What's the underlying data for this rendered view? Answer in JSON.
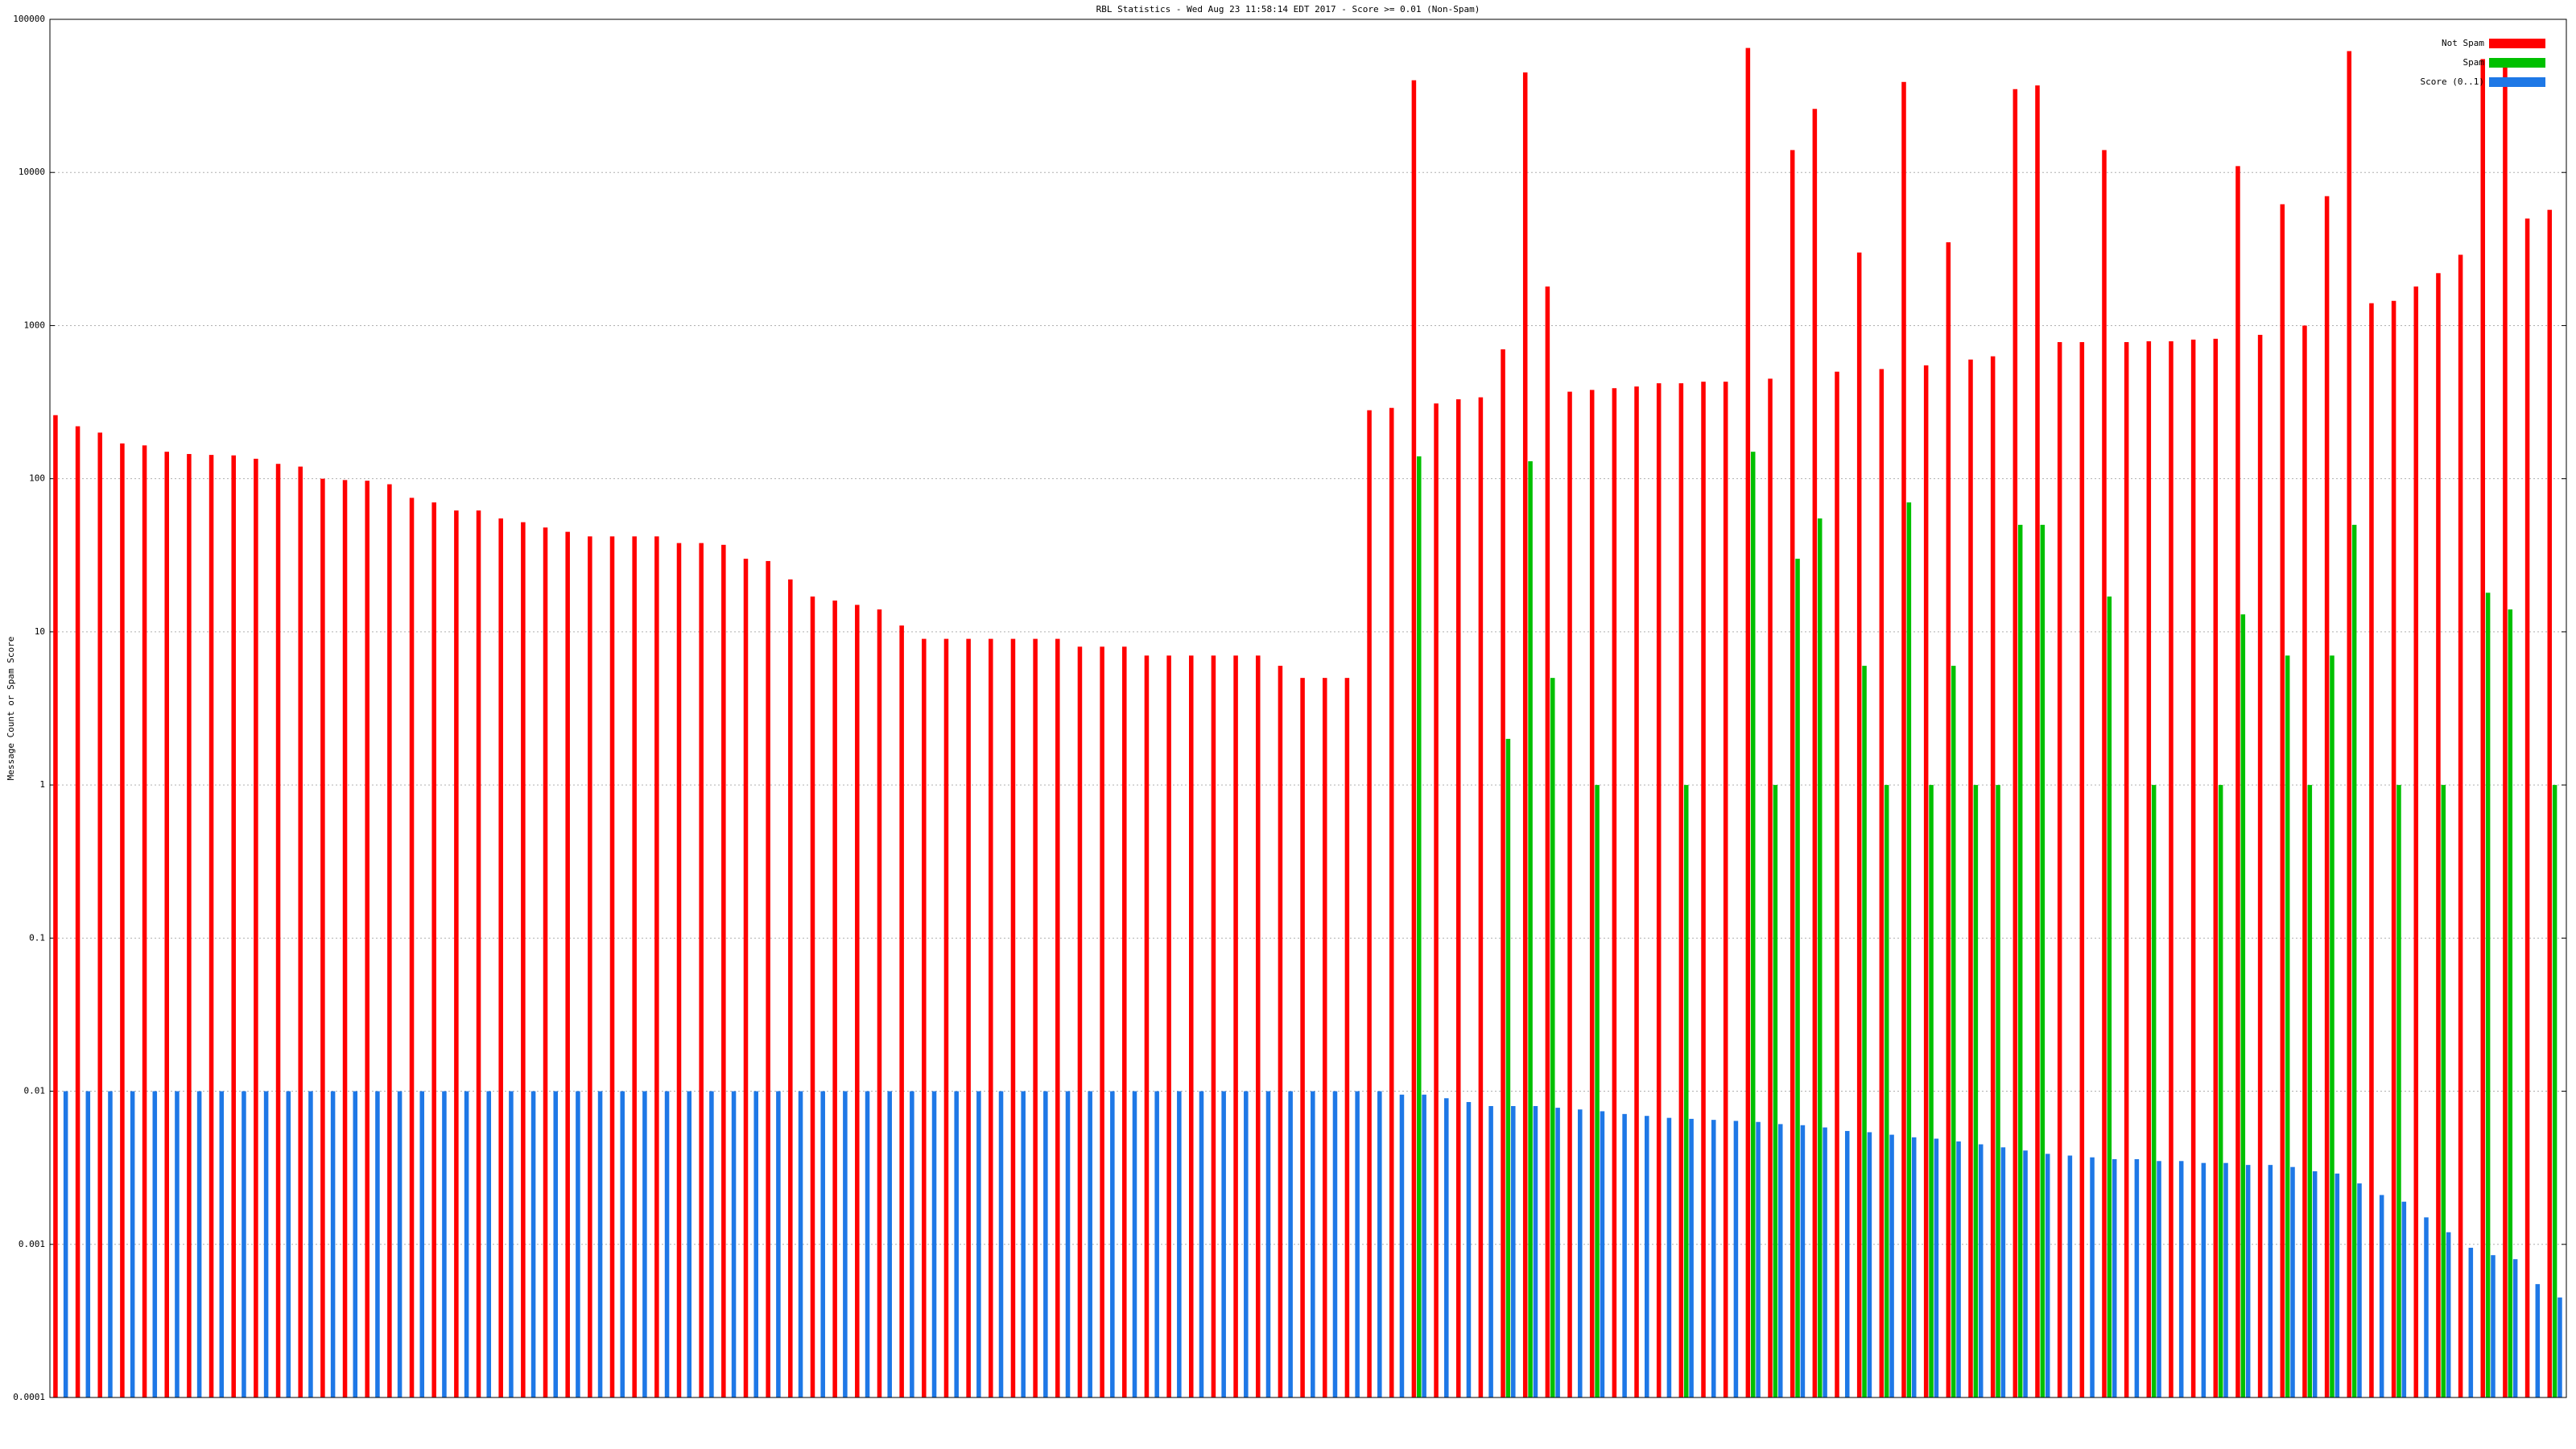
{
  "chart_data": {
    "type": "bar",
    "title": "RBL Statistics - Wed Aug 23 11:58:14 EDT 2017 - Score >= 0.01 (Non-Spam)",
    "ylabel": "Message Count or Spam Score",
    "yscale": "log",
    "ylim": [
      0.0001,
      100000
    ],
    "yticks": [
      0.0001,
      0.001,
      0.01,
      0.1,
      1,
      10,
      100,
      1000,
      10000,
      100000
    ],
    "grid": true,
    "legend": "upper right",
    "categories": [
      null,
      null,
      null,
      null,
      null,
      null,
      null,
      null,
      null,
      null,
      null,
      null,
      null,
      null,
      null,
      null,
      null,
      null,
      null,
      null,
      null,
      null,
      null,
      null,
      null,
      null,
      null,
      null,
      null,
      null,
      null,
      null,
      null,
      null,
      null,
      null,
      null,
      null,
      null,
      null,
      null,
      null,
      null,
      null,
      null,
      null,
      null,
      null,
      null,
      null,
      null,
      null,
      null,
      null,
      null,
      null,
      null,
      null,
      null,
      null,
      null,
      null,
      null,
      null,
      null,
      null,
      null,
      null,
      null,
      null,
      null,
      null,
      null,
      null,
      null,
      null,
      null,
      null,
      null,
      null,
      null,
      null,
      null,
      null,
      null,
      null,
      null,
      null,
      null,
      null,
      null,
      null,
      null,
      null,
      null,
      null,
      null,
      null,
      null,
      null,
      null,
      null,
      null,
      null,
      null,
      null,
      null,
      null,
      null,
      null,
      null,
      null,
      null
    ],
    "series": [
      {
        "name": "Not Spam",
        "color": "#ff0000",
        "values": [
          260,
          220,
          200,
          170,
          165,
          150,
          145,
          143,
          142,
          135,
          125,
          120,
          100,
          98,
          97,
          92,
          75,
          70,
          62,
          62,
          55,
          52,
          48,
          45,
          42,
          42,
          42,
          42,
          38,
          38,
          37,
          30,
          29,
          22,
          17,
          16,
          15,
          14,
          11,
          9,
          9,
          9,
          9,
          9,
          9,
          9,
          8,
          8,
          8,
          7,
          7,
          7,
          7,
          7,
          7,
          6,
          5,
          5,
          5,
          280,
          290,
          40000,
          310,
          330,
          340,
          700,
          45000,
          1800,
          370,
          380,
          390,
          400,
          420,
          420,
          430,
          430,
          65000,
          450,
          14000,
          26000,
          500,
          3000,
          520,
          39000,
          550,
          3500,
          600,
          630,
          35000,
          37000,
          780,
          780,
          14000,
          780,
          790,
          790,
          810,
          820,
          11000,
          870,
          6200,
          1000,
          7000,
          62000,
          1400,
          1450,
          1800,
          2200,
          2900,
          55000,
          52000,
          5000,
          5700
        ]
      },
      {
        "name": "Spam",
        "color": "#00c000",
        "values": [
          null,
          null,
          null,
          null,
          null,
          null,
          null,
          null,
          null,
          null,
          null,
          null,
          null,
          null,
          null,
          null,
          null,
          null,
          null,
          null,
          null,
          null,
          null,
          null,
          null,
          null,
          null,
          null,
          null,
          null,
          null,
          null,
          null,
          null,
          null,
          null,
          null,
          null,
          null,
          null,
          null,
          null,
          null,
          null,
          null,
          null,
          null,
          null,
          null,
          null,
          null,
          null,
          null,
          null,
          null,
          null,
          null,
          null,
          null,
          null,
          null,
          140,
          null,
          null,
          null,
          2,
          130,
          5,
          null,
          1,
          null,
          null,
          null,
          1,
          null,
          null,
          150,
          1,
          30,
          55,
          null,
          6,
          1,
          70,
          1,
          6,
          1,
          1,
          50,
          50,
          null,
          null,
          17,
          null,
          1,
          null,
          null,
          1,
          13,
          null,
          7,
          1,
          7,
          50,
          null,
          1,
          null,
          1,
          null,
          18,
          14,
          null,
          1
        ]
      },
      {
        "name": "Score (0..1)",
        "color": "#1e78e6",
        "values": [
          0.01,
          0.01,
          0.01,
          0.01,
          0.01,
          0.01,
          0.01,
          0.01,
          0.01,
          0.01,
          0.01,
          0.01,
          0.01,
          0.01,
          0.01,
          0.01,
          0.01,
          0.01,
          0.01,
          0.01,
          0.01,
          0.01,
          0.01,
          0.01,
          0.01,
          0.01,
          0.01,
          0.01,
          0.01,
          0.01,
          0.01,
          0.01,
          0.01,
          0.01,
          0.01,
          0.01,
          0.01,
          0.01,
          0.01,
          0.01,
          0.01,
          0.01,
          0.01,
          0.01,
          0.01,
          0.01,
          0.01,
          0.01,
          0.01,
          0.01,
          0.01,
          0.01,
          0.01,
          0.01,
          0.01,
          0.01,
          0.01,
          0.01,
          0.01,
          0.01,
          0.0095,
          0.0095,
          0.009,
          0.0085,
          0.008,
          0.008,
          0.008,
          0.0078,
          0.0076,
          0.0074,
          0.0071,
          0.0069,
          0.0067,
          0.0066,
          0.0065,
          0.0064,
          0.0063,
          0.0061,
          0.006,
          0.0058,
          0.0055,
          0.0054,
          0.0052,
          0.005,
          0.0049,
          0.0047,
          0.0045,
          0.0043,
          0.0041,
          0.0039,
          0.0038,
          0.0037,
          0.0036,
          0.0036,
          0.0035,
          0.0035,
          0.0034,
          0.0034,
          0.0033,
          0.0033,
          0.0032,
          0.003,
          0.0029,
          0.0025,
          0.0021,
          0.0019,
          0.0015,
          0.0012,
          0.00095,
          0.00085,
          0.0008,
          0.00055,
          0.00045
        ]
      }
    ]
  }
}
